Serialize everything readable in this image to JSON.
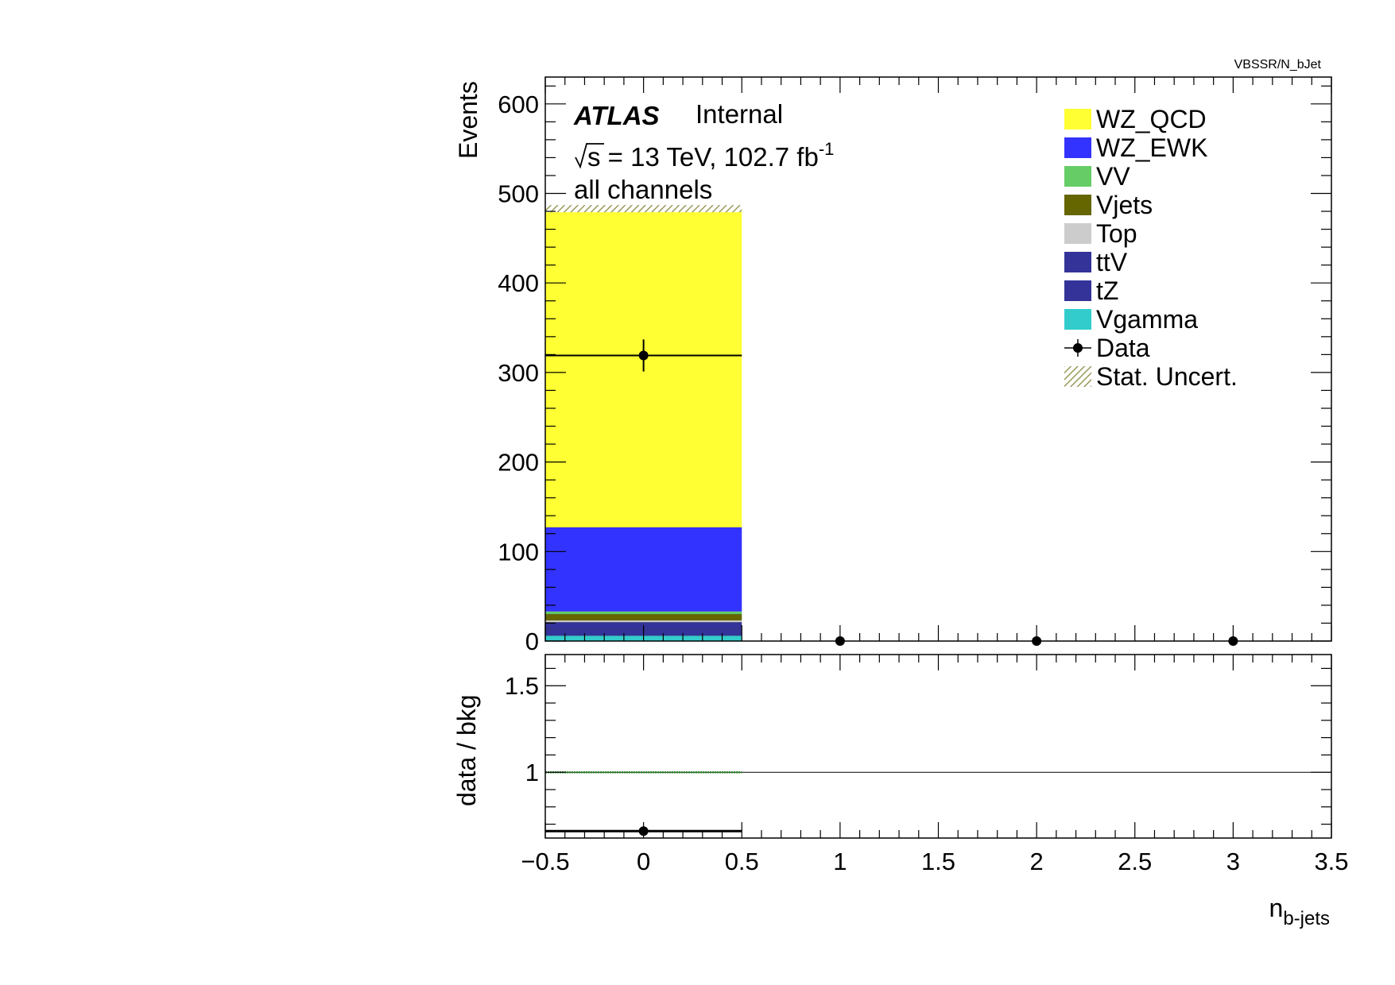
{
  "chart_data": {
    "type": "bar",
    "stacked": true,
    "path_label": "VBSSR/N_bJet",
    "experiment": "ATLAS",
    "status": "Internal",
    "sqrt_s_text": "s = 13 TeV, 102.7 fb",
    "sqrt_s_sup": "-1",
    "region": "all channels",
    "ylabel": "Events",
    "ratio_ylabel": "data / bkg",
    "xlabel": "n",
    "xlabel_sub": "b-jets",
    "xlim": [
      -0.5,
      3.5
    ],
    "ylim": [
      0,
      630
    ],
    "ratio_ylim": [
      0.62,
      1.68
    ],
    "x_ticks": [
      -0.5,
      0,
      0.5,
      1,
      1.5,
      2,
      2.5,
      3,
      3.5
    ],
    "x_tick_labels": [
      "−0.5",
      "0",
      "0.5",
      "1",
      "1.5",
      "2",
      "2.5",
      "3",
      "3.5"
    ],
    "y_ticks": [
      0,
      100,
      200,
      300,
      400,
      500,
      600
    ],
    "y_tick_labels": [
      "0",
      "100",
      "200",
      "300",
      "400",
      "500",
      "600"
    ],
    "ratio_y_ticks": [
      1,
      1.5
    ],
    "ratio_y_tick_labels": [
      "1",
      "1.5"
    ],
    "bin_edges": [
      -0.5,
      0.5
    ],
    "series": [
      {
        "name": "Vgamma",
        "color": "#33cccc",
        "values": [
          6
        ]
      },
      {
        "name": "tZ",
        "color": "#333399",
        "values": [
          7
        ]
      },
      {
        "name": "ttV",
        "color": "#333399",
        "values": [
          8
        ]
      },
      {
        "name": "Top",
        "color": "#cccccc",
        "values": [
          2
        ]
      },
      {
        "name": "Vjets",
        "color": "#666600",
        "values": [
          7
        ]
      },
      {
        "name": "VV",
        "color": "#66cc66",
        "values": [
          3
        ]
      },
      {
        "name": "WZ_EWK",
        "color": "#3333ff",
        "values": [
          94
        ]
      },
      {
        "name": "WZ_QCD",
        "color": "#ffff33",
        "values": [
          356
        ]
      }
    ],
    "legend_order": [
      "WZ_QCD",
      "WZ_EWK",
      "VV",
      "Vjets",
      "Top",
      "ttV",
      "tZ",
      "Vgamma"
    ],
    "stat_uncert": {
      "name": "Stat. Uncert.",
      "total": 483,
      "error": 4,
      "color": "#99995a"
    },
    "data": {
      "name": "Data",
      "x": [
        0,
        1,
        2,
        3
      ],
      "y": [
        319,
        0,
        0,
        0
      ],
      "yerr": [
        17.9,
        0,
        0,
        0
      ]
    },
    "ratio": {
      "x": [
        0
      ],
      "y": [
        0.66
      ],
      "yerr": [
        0.02
      ],
      "reference": 1
    },
    "legend_placement": "top-right"
  }
}
